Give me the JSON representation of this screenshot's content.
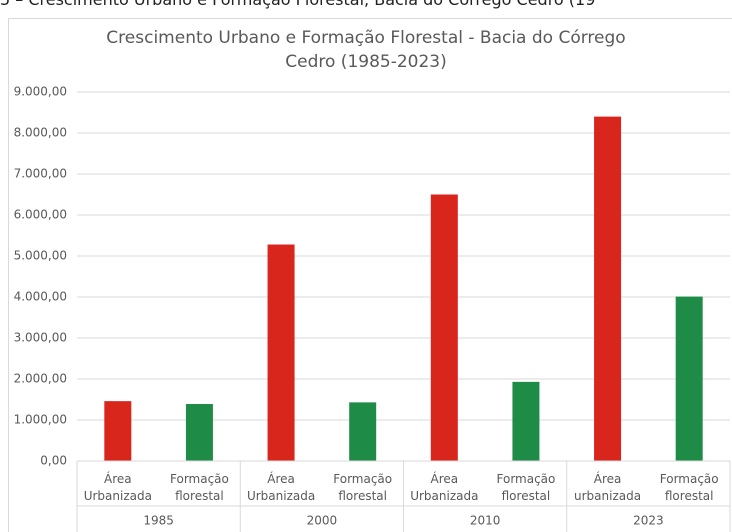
{
  "caption": "5 – Crescimento Urbano e Formação Florestal, Bacia do Córrego Cedro (19",
  "chart_data": {
    "type": "bar",
    "title": "Crescimento Urbano e Formação Florestal - Bacia do Córrego Cedro (1985-2023)",
    "categories": [
      "Área Urbanizada",
      "Formação florestal",
      "Área Urbanizada",
      "Formação florestal",
      "Área Urbanizada",
      "Formação florestal",
      "Área urbanizada",
      "Formação florestal"
    ],
    "groups": [
      "1985",
      "2000",
      "2010",
      "2023"
    ],
    "values": [
      1460,
      1390,
      5280,
      1430,
      6500,
      1930,
      8400,
      4010
    ],
    "colors": [
      "#d9261c",
      "#1e8c47",
      "#d9261c",
      "#1e8c47",
      "#d9261c",
      "#1e8c47",
      "#d9261c",
      "#1e8c47"
    ],
    "ylim": [
      0,
      9000
    ],
    "yticks": [
      {
        "value": 0,
        "label": "0,00"
      },
      {
        "value": 1000,
        "label": "1.000,00"
      },
      {
        "value": 2000,
        "label": "2.000,00"
      },
      {
        "value": 3000,
        "label": "3.000,00"
      },
      {
        "value": 4000,
        "label": "4.000,00"
      },
      {
        "value": 5000,
        "label": "5.000,00"
      },
      {
        "value": 6000,
        "label": "6.000,00"
      },
      {
        "value": 7000,
        "label": "7.000,00"
      },
      {
        "value": 8000,
        "label": "8.000,00"
      },
      {
        "value": 9000,
        "label": "9.000,00"
      }
    ],
    "grid": true
  }
}
